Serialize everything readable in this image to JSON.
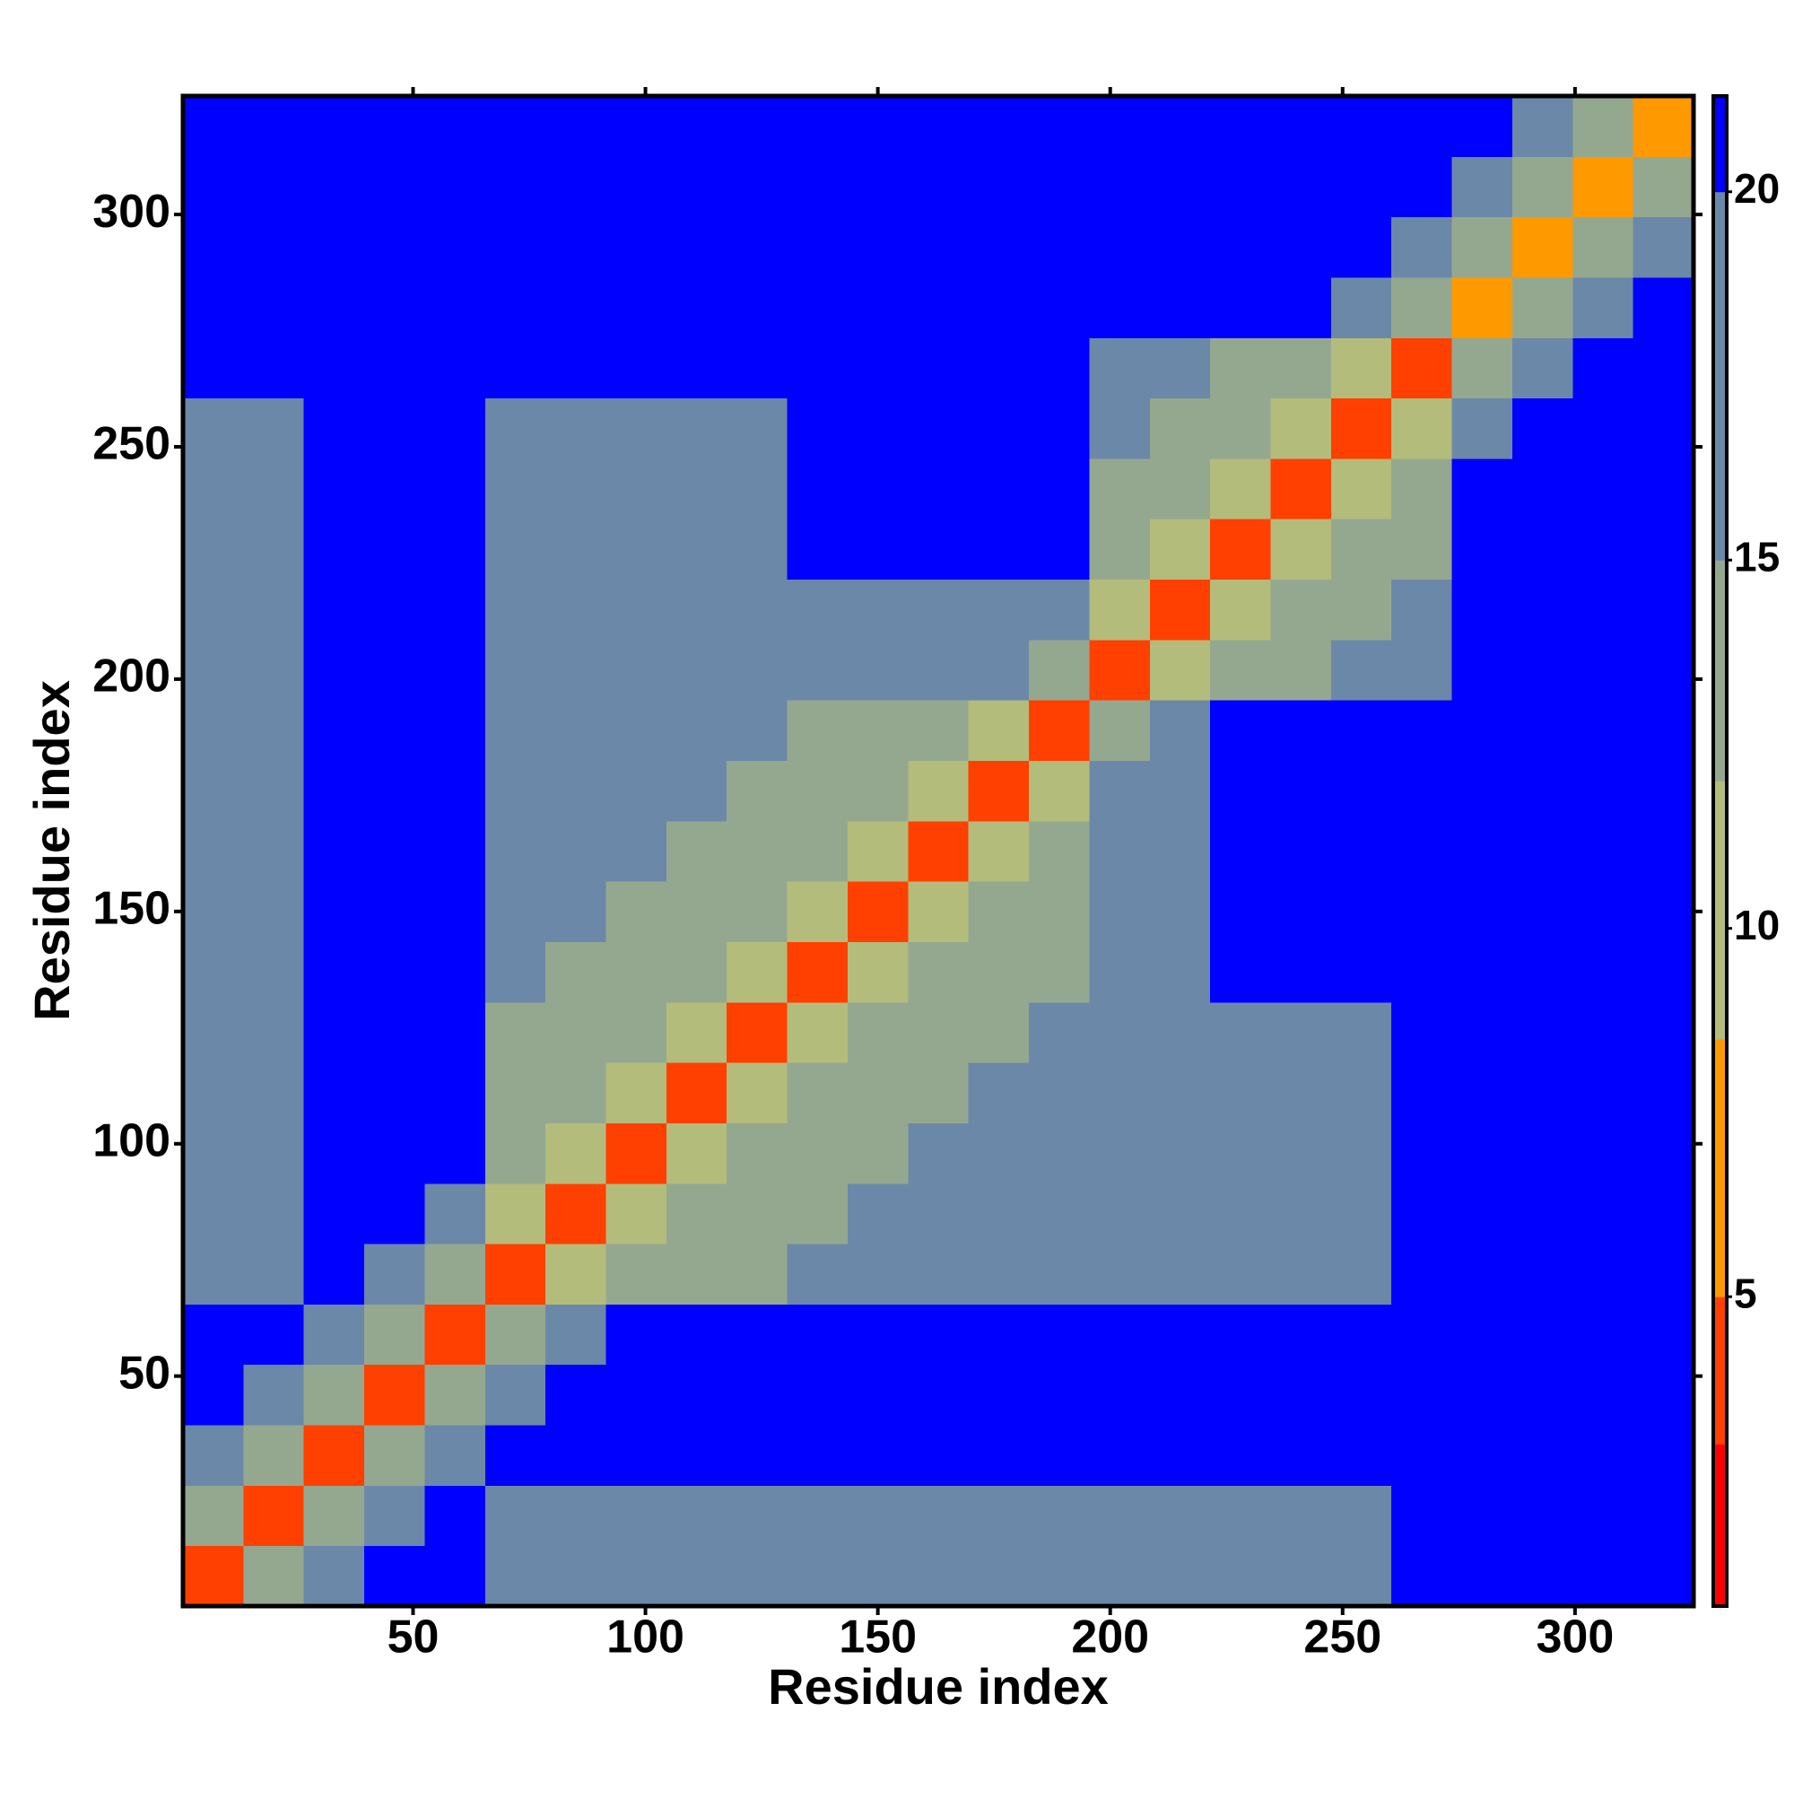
{
  "chart_data": {
    "type": "heatmap",
    "xlabel": "Residue index",
    "ylabel": "Residue index",
    "xbins": [
      0.5,
      13.5,
      26.5,
      39.5,
      52.5,
      65.5,
      78.5,
      91.5,
      104.5,
      117.5,
      130.5,
      143.5,
      156.5,
      169.5,
      182.5,
      195.5,
      208.5,
      221.5,
      234.5,
      247.5,
      260.5,
      273.5,
      286.5,
      299.5,
      312.5,
      325.5
    ],
    "ybins": [
      0.5,
      13.5,
      26.5,
      39.5,
      52.5,
      65.5,
      78.5,
      91.5,
      104.5,
      117.5,
      130.5,
      143.5,
      156.5,
      169.5,
      182.5,
      195.5,
      208.5,
      221.5,
      234.5,
      247.5,
      260.5,
      273.5,
      286.5,
      299.5,
      312.5,
      325.5
    ],
    "z": [
      [
        5,
        15,
        19,
        21,
        21,
        20,
        20,
        20,
        20,
        20,
        20,
        20,
        20,
        20,
        20,
        20,
        20,
        20,
        20,
        20,
        21,
        21,
        21,
        21,
        21
      ],
      [
        15,
        5,
        15,
        19,
        21,
        20,
        20,
        20,
        20,
        20,
        20,
        20,
        20,
        20,
        20,
        20,
        20,
        20,
        20,
        20,
        21,
        21,
        21,
        21,
        21
      ],
      [
        19,
        15,
        5,
        15,
        19,
        21,
        21,
        21,
        21,
        21,
        21,
        21,
        21,
        21,
        21,
        21,
        21,
        21,
        21,
        21,
        21,
        21,
        21,
        21,
        21
      ],
      [
        21,
        19,
        15,
        5,
        15,
        19,
        21,
        21,
        21,
        21,
        21,
        21,
        21,
        21,
        21,
        21,
        21,
        21,
        21,
        21,
        21,
        21,
        21,
        21,
        21
      ],
      [
        21,
        21,
        19,
        15,
        5,
        15,
        19,
        21,
        21,
        21,
        21,
        21,
        21,
        21,
        21,
        21,
        21,
        21,
        21,
        21,
        21,
        21,
        21,
        21,
        21
      ],
      [
        20,
        20,
        21,
        19,
        15,
        5,
        11,
        14,
        14,
        14,
        17,
        17,
        17,
        17,
        17,
        20,
        20,
        20,
        20,
        20,
        21,
        21,
        21,
        21,
        21
      ],
      [
        20,
        20,
        21,
        21,
        19,
        11,
        5,
        11,
        14,
        14,
        14,
        17,
        17,
        17,
        17,
        20,
        20,
        20,
        20,
        20,
        21,
        21,
        21,
        21,
        21
      ],
      [
        20,
        20,
        21,
        21,
        21,
        14,
        11,
        5,
        11,
        14,
        14,
        14,
        17,
        17,
        17,
        20,
        20,
        20,
        20,
        20,
        21,
        21,
        21,
        21,
        21
      ],
      [
        20,
        20,
        21,
        21,
        21,
        14,
        14,
        11,
        5,
        11,
        14,
        14,
        14,
        17,
        17,
        16,
        16,
        20,
        20,
        20,
        21,
        21,
        21,
        21,
        21
      ],
      [
        20,
        20,
        21,
        21,
        21,
        14,
        14,
        14,
        11,
        5,
        11,
        14,
        14,
        14,
        17,
        16,
        16,
        20,
        20,
        20,
        21,
        21,
        21,
        21,
        21
      ],
      [
        20,
        20,
        21,
        21,
        21,
        17,
        14,
        14,
        14,
        11,
        5,
        11,
        14,
        14,
        14,
        16,
        16,
        21,
        21,
        21,
        21,
        21,
        21,
        21,
        21
      ],
      [
        20,
        20,
        21,
        21,
        21,
        17,
        17,
        14,
        14,
        14,
        11,
        5,
        11,
        14,
        14,
        16,
        16,
        21,
        21,
        21,
        21,
        21,
        21,
        21,
        21
      ],
      [
        20,
        20,
        21,
        21,
        21,
        17,
        17,
        17,
        14,
        14,
        14,
        11,
        5,
        11,
        14,
        16,
        16,
        21,
        21,
        21,
        21,
        21,
        21,
        21,
        21
      ],
      [
        20,
        20,
        21,
        21,
        21,
        17,
        17,
        17,
        17,
        14,
        14,
        14,
        11,
        5,
        11,
        16,
        16,
        21,
        21,
        21,
        21,
        21,
        21,
        21,
        21
      ],
      [
        20,
        20,
        21,
        21,
        21,
        17,
        17,
        17,
        17,
        17,
        14,
        14,
        14,
        11,
        5,
        15,
        19,
        21,
        21,
        21,
        21,
        21,
        21,
        21,
        21
      ],
      [
        20,
        20,
        21,
        21,
        21,
        20,
        20,
        20,
        16,
        16,
        16,
        16,
        16,
        16,
        15,
        5,
        11,
        14,
        14,
        17,
        17,
        21,
        21,
        21,
        21
      ],
      [
        20,
        20,
        21,
        21,
        21,
        20,
        20,
        20,
        16,
        16,
        16,
        16,
        16,
        16,
        19,
        11,
        5,
        11,
        14,
        14,
        17,
        21,
        21,
        21,
        21
      ],
      [
        20,
        20,
        21,
        21,
        21,
        20,
        20,
        20,
        20,
        20,
        21,
        21,
        21,
        21,
        21,
        14,
        11,
        5,
        11,
        14,
        14,
        21,
        21,
        21,
        21
      ],
      [
        20,
        20,
        21,
        21,
        21,
        20,
        20,
        20,
        20,
        20,
        21,
        21,
        21,
        21,
        21,
        14,
        14,
        11,
        5,
        11,
        14,
        21,
        21,
        21,
        21
      ],
      [
        20,
        20,
        21,
        21,
        21,
        20,
        20,
        20,
        20,
        20,
        21,
        21,
        21,
        21,
        21,
        17,
        14,
        14,
        11,
        5,
        11,
        19,
        21,
        21,
        21
      ],
      [
        21,
        21,
        21,
        21,
        21,
        21,
        21,
        21,
        21,
        21,
        21,
        21,
        21,
        21,
        21,
        17,
        17,
        14,
        14,
        11,
        5,
        15,
        19,
        21,
        21
      ],
      [
        21,
        21,
        21,
        21,
        21,
        21,
        21,
        21,
        21,
        21,
        21,
        21,
        21,
        21,
        21,
        21,
        21,
        21,
        21,
        19,
        15,
        6,
        15,
        19,
        21
      ],
      [
        21,
        21,
        21,
        21,
        21,
        21,
        21,
        21,
        21,
        21,
        21,
        21,
        21,
        21,
        21,
        21,
        21,
        21,
        21,
        21,
        19,
        15,
        6,
        15,
        19
      ],
      [
        21,
        21,
        21,
        21,
        21,
        21,
        21,
        21,
        21,
        21,
        21,
        21,
        21,
        21,
        21,
        21,
        21,
        21,
        21,
        21,
        21,
        19,
        15,
        6,
        15
      ],
      [
        21,
        21,
        21,
        21,
        21,
        21,
        21,
        21,
        21,
        21,
        21,
        21,
        21,
        21,
        21,
        21,
        21,
        21,
        21,
        21,
        21,
        21,
        19,
        15,
        6
      ]
    ],
    "xlim": [
      0.5,
      325.5
    ],
    "ylim": [
      0.5,
      325.5
    ],
    "xticks": [
      50,
      100,
      150,
      200,
      250,
      300
    ],
    "yticks": [
      50,
      100,
      150,
      200,
      250,
      300
    ],
    "zlim": [
      0.8,
      21.3
    ],
    "zticks": [
      5,
      10,
      15,
      20
    ],
    "colorscale": [
      {
        "to": 3,
        "color": "#ff0000"
      },
      {
        "to": 5,
        "color": "#ff4000"
      },
      {
        "to": 8.5,
        "color": "#ff9900"
      },
      {
        "to": 12,
        "color": "#b4bc7c"
      },
      {
        "to": 15,
        "color": "#94a890"
      },
      {
        "to": 20,
        "color": "#6c88a8"
      },
      {
        "to": 21.3,
        "color": "#0000ff"
      }
    ]
  }
}
